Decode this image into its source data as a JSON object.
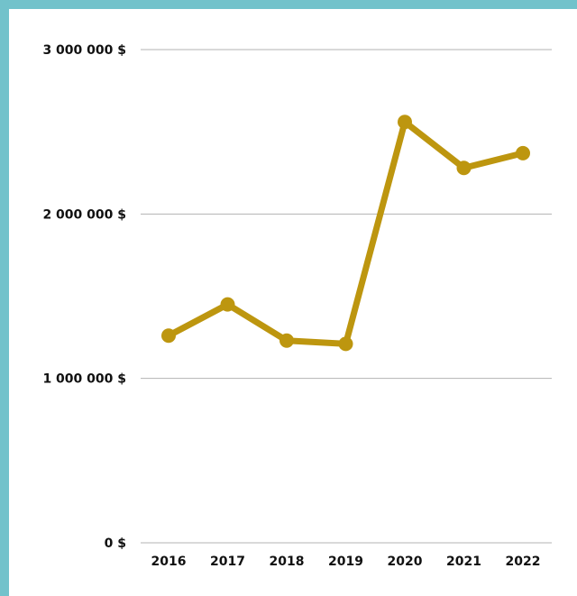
{
  "colors": {
    "frame": "#72c2cb",
    "background": "#ffffff",
    "line": "#bd960f",
    "grid": "#b3b3b3"
  },
  "chart_data": {
    "type": "line",
    "title": "",
    "xlabel": "",
    "ylabel": "",
    "categories": [
      "2016",
      "2017",
      "2018",
      "2019",
      "2020",
      "2021",
      "2022"
    ],
    "series": [
      {
        "values": [
          1260000,
          1450000,
          1230000,
          1210000,
          2560000,
          2280000,
          2370000
        ]
      }
    ],
    "ylim": [
      0,
      3000000
    ],
    "y_ticks": [
      {
        "value": 0,
        "label": "0 $"
      },
      {
        "value": 1000000,
        "label": "1 000 000 $"
      },
      {
        "value": 2000000,
        "label": "2 000 000 $"
      },
      {
        "value": 3000000,
        "label": "3 000 000 $"
      }
    ],
    "grid": true,
    "legend": "none"
  }
}
